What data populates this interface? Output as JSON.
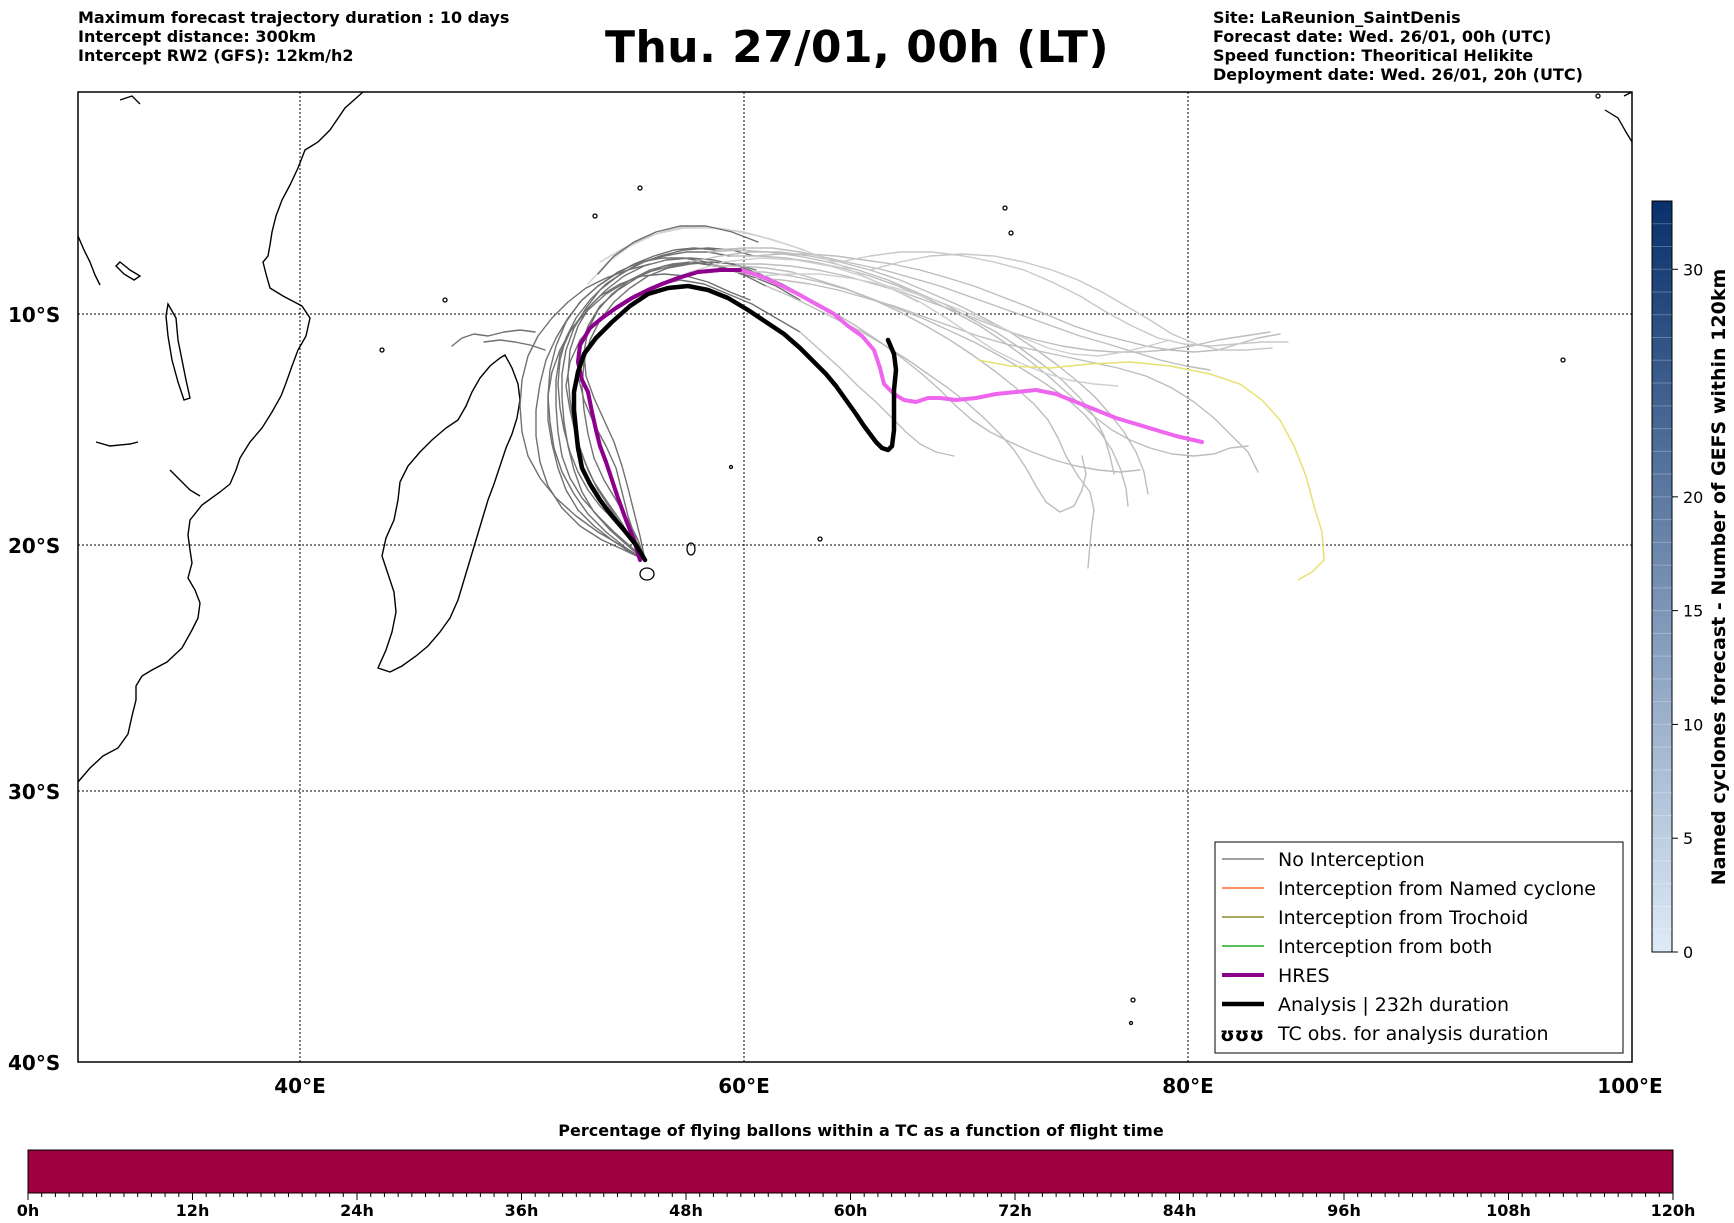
{
  "header": {
    "left": [
      "Maximum forecast trajectory duration : 10 days",
      "Intercept distance: 300km",
      "Intercept RW2 (GFS):  12km/h2"
    ],
    "title": "Thu. 27/01, 00h (LT)",
    "right": [
      "Site: LaReunion_SaintDenis",
      "Forecast date: Wed. 26/01, 00h (UTC)",
      "Speed function: Theoritical Helikite",
      "Deployment date: Wed. 26/01, 20h (UTC)"
    ]
  },
  "map": {
    "lat_labels": [
      "10°S",
      "20°S",
      "30°S",
      "40°S"
    ],
    "lon_labels": [
      "40°E",
      "60°E",
      "80°E",
      "100°E"
    ]
  },
  "legend": {
    "items": [
      {
        "label": "No Interception",
        "color": "#808080"
      },
      {
        "label": "Interception from Named cyclone",
        "color": "#ff6a2a"
      },
      {
        "label": "Interception from Trochoid",
        "color": "#8b8b2a"
      },
      {
        "label": "Interception from both",
        "color": "#22aa22"
      },
      {
        "label": "HRES",
        "color": "#8b008b"
      },
      {
        "label": "Analysis | 232h duration",
        "color": "#000000"
      },
      {
        "label": "TC obs. for analysis duration",
        "symbol": "ʊʊʊ"
      }
    ]
  },
  "colorbar": {
    "title": "Named cyclones forecast - Number of GEFS within 120km",
    "ticks": [
      "0",
      "5",
      "10",
      "15",
      "20",
      "30"
    ],
    "colors": [
      "#deebf7",
      "#08306b"
    ]
  },
  "bottom": {
    "title": "Percentage of flying ballons within a TC as a function of flight time",
    "bar_color": "#9e0040",
    "hours": [
      "0h",
      "12h",
      "24h",
      "36h",
      "48h",
      "60h",
      "72h",
      "84h",
      "96h",
      "108h",
      "120h"
    ]
  }
}
